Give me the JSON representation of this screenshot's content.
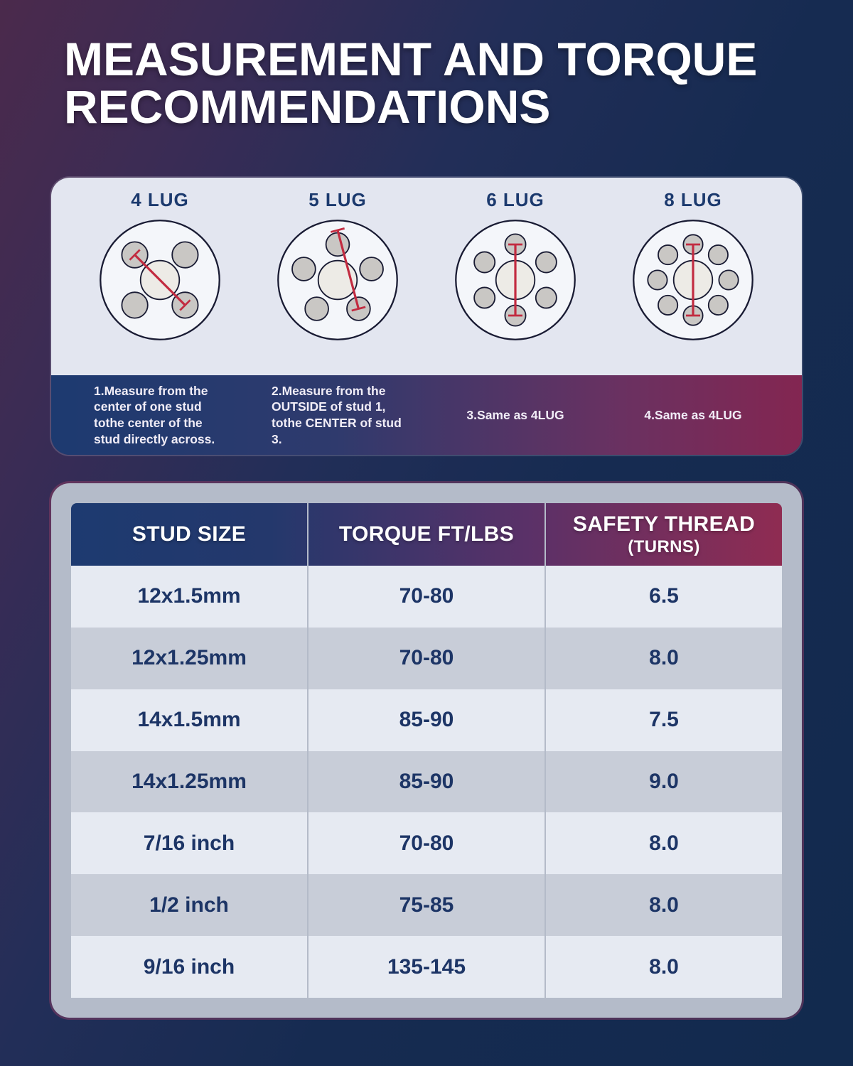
{
  "title": "MEASUREMENT AND TORQUE RECOMMENDATIONS",
  "lug_section": {
    "patterns": [
      {
        "label": "4 LUG",
        "stud_count": 4,
        "measure": {
          "from": "center",
          "to": "center"
        },
        "note": "1.Measure from the center of one stud tothe center of the stud directly across."
      },
      {
        "label": "5 LUG",
        "stud_count": 5,
        "measure": {
          "from": "outside",
          "to": "center"
        },
        "note": "2.Measure from the OUTSIDE of stud 1, tothe CENTER of stud 3."
      },
      {
        "label": "6 LUG",
        "stud_count": 6,
        "measure": {
          "from": "center",
          "to": "center"
        },
        "note": "3.Same as 4LUG"
      },
      {
        "label": "8 LUG",
        "stud_count": 8,
        "measure": {
          "from": "center",
          "to": "center"
        },
        "note": "4.Same as 4LUG"
      }
    ]
  },
  "table": {
    "columns": [
      "STUD SIZE",
      "TORQUE FT/LBS",
      "SAFETY THREAD"
    ],
    "column3_subline": "(TURNS)",
    "rows": [
      {
        "stud_size": "12x1.5mm",
        "torque": "70-80",
        "safety_thread": "6.5"
      },
      {
        "stud_size": "12x1.25mm",
        "torque": "70-80",
        "safety_thread": "8.0"
      },
      {
        "stud_size": "14x1.5mm",
        "torque": "85-90",
        "safety_thread": "7.5"
      },
      {
        "stud_size": "14x1.25mm",
        "torque": "85-90",
        "safety_thread": "9.0"
      },
      {
        "stud_size": "7/16 inch",
        "torque": "70-80",
        "safety_thread": "8.0"
      },
      {
        "stud_size": "1/2 inch",
        "torque": "75-85",
        "safety_thread": "8.0"
      },
      {
        "stud_size": "9/16 inch",
        "torque": "135-145",
        "safety_thread": "8.0"
      }
    ]
  },
  "colors": {
    "bg_purple": "#4b2a4c",
    "bg_navy": "#122a4e",
    "panel_light": "#e3e6f0",
    "navy": "#1d3a70",
    "purple_mid": "#5a3168",
    "maroon": "#832651",
    "red_line": "#c22b40",
    "label_navy": "#1c3a6e",
    "table_frame": "#b4bbc9",
    "row_light": "#e6eaf2",
    "row_gray": "#c8cdd8",
    "cell_text": "#1d3566",
    "note_text": "#f1edf7",
    "white": "#ffffff"
  }
}
